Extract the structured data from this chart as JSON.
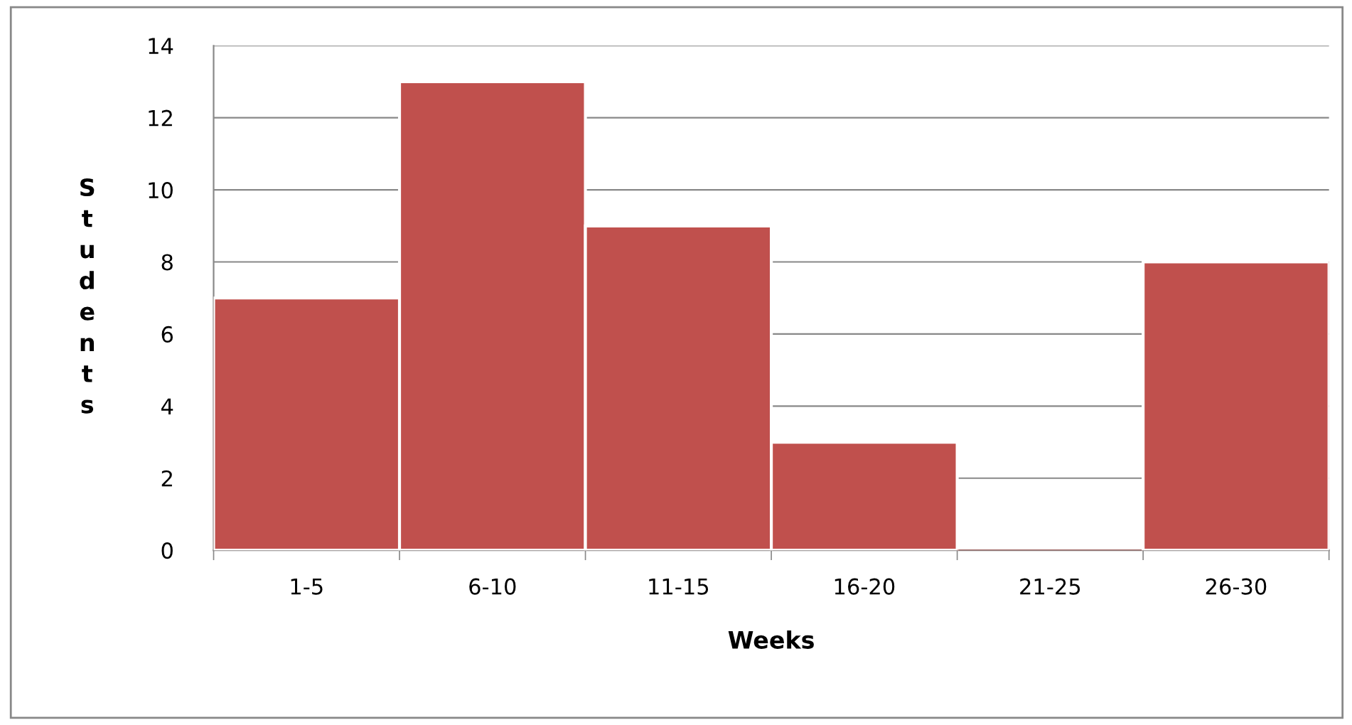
{
  "chart_data": {
    "type": "bar",
    "xlabel": "Weeks",
    "ylabel": "Students",
    "categories": [
      "1-5",
      "6-10",
      "11-15",
      "16-20",
      "21-25",
      "26-30"
    ],
    "values": [
      7,
      13,
      9,
      3,
      0,
      8
    ],
    "color": "#c0504d",
    "ylim": [
      0,
      14
    ],
    "yticks": [
      0,
      2,
      4,
      6,
      8,
      10,
      12,
      14
    ],
    "grid": "y",
    "legend": false
  }
}
